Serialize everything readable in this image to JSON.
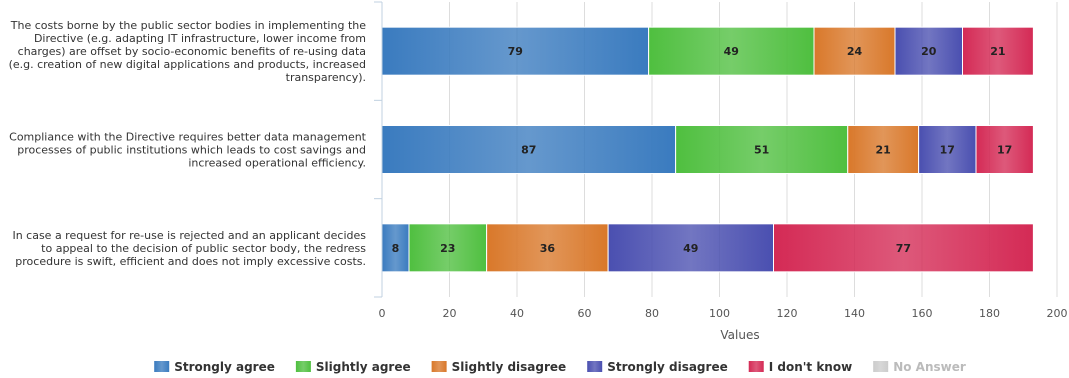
{
  "chart_data": {
    "type": "bar",
    "orientation": "horizontal",
    "stacked": true,
    "categories": [
      "The costs borne by the public sector bodies in implementing the Directive (e.g. adapting IT infrastructure, lower income from charges) are offset by socio-economic benefits of re-using data (e.g. creation of new digital applications and products, increased transparency).",
      "Compliance with the Directive requires better data management processes of public institutions which leads to cost savings and increased operational efficiency.",
      "In case a request for re-use is rejected and an applicant decides to appeal to the decision of public sector body, the redress procedure is swift, efficient and does not imply excessive costs."
    ],
    "category_lines": [
      [
        "The costs borne by the public sector bodies in implementing the",
        "Directive (e.g. adapting IT infrastructure, lower income from",
        "charges) are offset by socio-economic benefits of re-using data",
        "(e.g. creation of new digital applications and products, increased",
        "transparency)."
      ],
      [
        "Compliance with the Directive requires better data management",
        "processes of public institutions which leads to cost savings and",
        "increased operational efficiency."
      ],
      [
        "In case a request for re-use is rejected and an applicant decides",
        "to appeal to the decision of public sector body, the redress",
        "procedure is swift, efficient and does not imply excessive costs."
      ]
    ],
    "series": [
      {
        "name": "Strongly agree",
        "color": "#3a7bbf",
        "values": [
          79,
          87,
          8
        ]
      },
      {
        "name": "Slightly agree",
        "color": "#4fbf3f",
        "values": [
          49,
          51,
          23
        ]
      },
      {
        "name": "Slightly disagree",
        "color": "#d9782a",
        "values": [
          24,
          21,
          36
        ]
      },
      {
        "name": "Strongly disagree",
        "color": "#4a4fb0",
        "values": [
          20,
          17,
          49
        ]
      },
      {
        "name": "I don't know",
        "color": "#d42a55",
        "values": [
          21,
          17,
          77
        ]
      },
      {
        "name": "No Answer",
        "color": "#cccccc",
        "values": [
          0,
          0,
          0
        ]
      }
    ],
    "xlabel": "Values",
    "xlim": [
      0,
      200
    ],
    "xticks": [
      0,
      20,
      40,
      60,
      80,
      100,
      120,
      140,
      160,
      180,
      200
    ],
    "grid": true,
    "legend_position": "bottom-center"
  }
}
